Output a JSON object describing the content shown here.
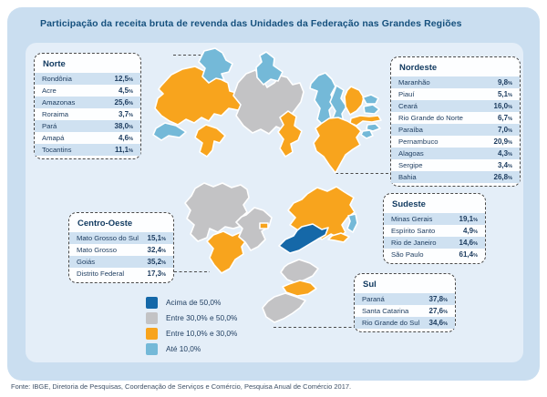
{
  "title": "Participação da receita bruta de revenda das Unidades da Federação nas Grandes Regiões",
  "footer": "Fonte: IBGE, Diretoria de Pesquisas, Coordenação de Serviços e Comércio, Pesquisa Anual de Comércio 2017.",
  "unit_suffix": "%",
  "palette": {
    "above_50": "#1568A8",
    "between_30_50": "#C3C3C5",
    "between_10_30": "#F8A41D",
    "upto_10": "#74B9D8",
    "panel_outer": "#CADEF0",
    "panel_inner": "#E4EEF8",
    "row_stripe": "#CFE1F1",
    "text_navy": "#1C3B5E",
    "title_navy": "#15507D",
    "dashed_line": "#4A4A4A"
  },
  "legend": [
    {
      "label": "Acima de 50,0%",
      "bin": "above_50"
    },
    {
      "label": "Entre 30,0% e 50,0%",
      "bin": "between_30_50"
    },
    {
      "label": "Entre 10,0% e 30,0%",
      "bin": "between_10_30"
    },
    {
      "label": "Até 10,0%",
      "bin": "upto_10"
    }
  ],
  "chart_data": {
    "type": "choropleth",
    "title": "Participação da receita bruta de revenda das Unidades da Federação nas Grandes Regiões",
    "unit": "%",
    "legend_position": "bottom-left",
    "regions": [
      {
        "name": "Norte",
        "states": [
          {
            "state": "Rondônia",
            "value": 12.5
          },
          {
            "state": "Acre",
            "value": 4.5
          },
          {
            "state": "Amazonas",
            "value": 25.6
          },
          {
            "state": "Roraima",
            "value": 3.7
          },
          {
            "state": "Pará",
            "value": 38.0
          },
          {
            "state": "Amapá",
            "value": 4.6
          },
          {
            "state": "Tocantins",
            "value": 11.1
          }
        ]
      },
      {
        "name": "Nordeste",
        "states": [
          {
            "state": "Maranhão",
            "value": 9.8
          },
          {
            "state": "Piauí",
            "value": 5.1
          },
          {
            "state": "Ceará",
            "value": 16.0
          },
          {
            "state": "Rio Grande do Norte",
            "value": 6.7
          },
          {
            "state": "Paraíba",
            "value": 7.0
          },
          {
            "state": "Pernambuco",
            "value": 20.9
          },
          {
            "state": "Alagoas",
            "value": 4.3
          },
          {
            "state": "Sergipe",
            "value": 3.4
          },
          {
            "state": "Bahia",
            "value": 26.8
          }
        ]
      },
      {
        "name": "Centro-Oeste",
        "states": [
          {
            "state": "Mato Grosso do Sul",
            "value": 15.1
          },
          {
            "state": "Mato Grosso",
            "value": 32.4
          },
          {
            "state": "Goiás",
            "value": 35.2
          },
          {
            "state": "Distrito Federal",
            "value": 17.3
          }
        ]
      },
      {
        "name": "Sudeste",
        "states": [
          {
            "state": "Minas Gerais",
            "value": 19.1
          },
          {
            "state": "Espírito Santo",
            "value": 4.9
          },
          {
            "state": "Rio de Janeiro",
            "value": 14.6
          },
          {
            "state": "São Paulo",
            "value": 61.4
          }
        ]
      },
      {
        "name": "Sul",
        "states": [
          {
            "state": "Paraná",
            "value": 37.8
          },
          {
            "state": "Santa Catarina",
            "value": 27.6
          },
          {
            "state": "Rio Grande do Sul",
            "value": 34.6
          }
        ]
      }
    ]
  }
}
